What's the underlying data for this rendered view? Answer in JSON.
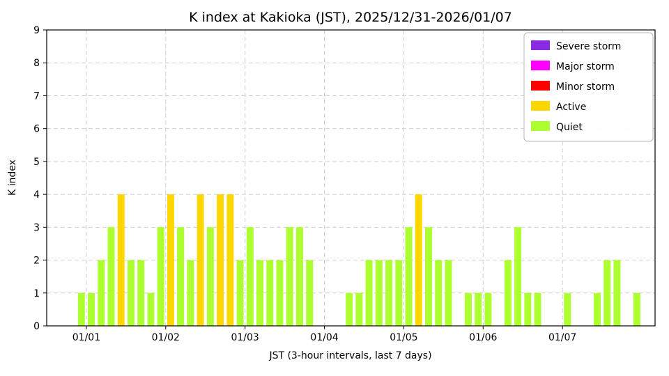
{
  "chart_data": {
    "type": "bar",
    "title": "K index at Kakioka (JST), 2025/12/31-2026/01/07",
    "xlabel": "JST (3-hour intervals, last 7 days)",
    "ylabel": "K index",
    "ylim": [
      0,
      9
    ],
    "y_ticks": [
      0,
      1,
      2,
      3,
      4,
      5,
      6,
      7,
      8,
      9
    ],
    "grid": true,
    "legend_position": "upper right",
    "x_axis": {
      "interval_hours": 3,
      "span_hours": 184,
      "ticks": [
        {
          "label": "01/01",
          "hour": 12
        },
        {
          "label": "01/02",
          "hour": 36
        },
        {
          "label": "01/03",
          "hour": 60
        },
        {
          "label": "01/04",
          "hour": 84
        },
        {
          "label": "01/05",
          "hour": 108
        },
        {
          "label": "01/06",
          "hour": 132
        },
        {
          "label": "01/07",
          "hour": 156
        }
      ]
    },
    "values": [
      0,
      0,
      0,
      1,
      1,
      2,
      3,
      4,
      2,
      2,
      1,
      3,
      4,
      3,
      2,
      4,
      3,
      4,
      4,
      2,
      3,
      2,
      2,
      2,
      3,
      3,
      2,
      0,
      0,
      0,
      1,
      1,
      2,
      2,
      2,
      2,
      3,
      4,
      3,
      2,
      2,
      0,
      1,
      1,
      1,
      0,
      2,
      3,
      1,
      1,
      0,
      0,
      1,
      0,
      0,
      1,
      2,
      2,
      0,
      1
    ],
    "color_scale": [
      {
        "label": "Quiet",
        "min": 0,
        "max": 3,
        "color": "#ADFF2F"
      },
      {
        "label": "Active",
        "min": 4,
        "max": 4,
        "color": "#FFD700"
      },
      {
        "label": "Minor storm",
        "min": 5,
        "max": 5,
        "color": "#FF0000"
      },
      {
        "label": "Major storm",
        "min": 6,
        "max": 7,
        "color": "#FF00FF"
      },
      {
        "label": "Severe storm",
        "min": 8,
        "max": 9,
        "color": "#8A2BE2"
      }
    ],
    "legend": [
      {
        "label": "Severe storm",
        "color": "#8A2BE2"
      },
      {
        "label": "Major storm",
        "color": "#FF00FF"
      },
      {
        "label": "Minor storm",
        "color": "#FF0000"
      },
      {
        "label": "Active",
        "color": "#FFD700"
      },
      {
        "label": "Quiet",
        "color": "#ADFF2F"
      }
    ],
    "style": {
      "grid_color": "#cfcfcf",
      "axis_color": "#000000",
      "background": "#ffffff",
      "legend_border": "#b5b5b5"
    }
  }
}
